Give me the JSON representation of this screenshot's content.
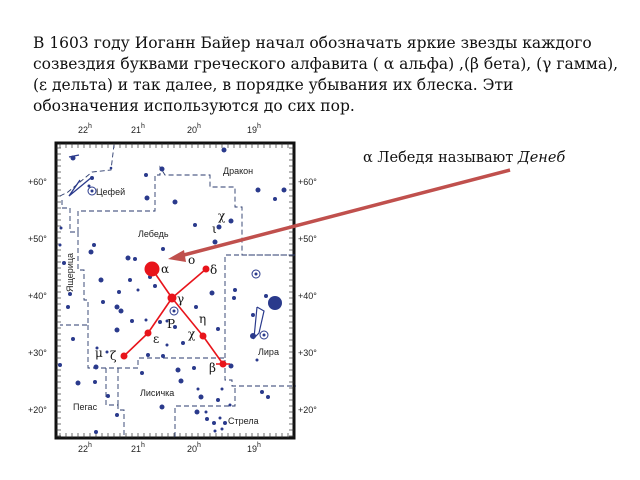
{
  "paragraph": "В 1603 году Иоганн Байер начал обозначать яркие звезды каждого созвездия буквами греческого алфавита ( α альфа) ,(β бета), (γ гамма), (ε дельта) и так далее, в порядке убывания их блеска. Эти обозначения используются до сих пор.",
  "caption": {
    "prefix": "α Лебедя называют ",
    "name": "Денеб"
  },
  "star_map": {
    "ra_labels": [
      "22h",
      "21h",
      "20h",
      "19h"
    ],
    "dec_labels": [
      "+60°",
      "+50°",
      "+40°",
      "+30°",
      "+20°"
    ],
    "constellations": [
      "Дракон",
      "Цефей",
      "Лебедь",
      "Ящерица",
      "Лира",
      "Лисичка",
      "Пегас",
      "Стрела"
    ],
    "greek_labels": [
      "α",
      "β",
      "γ",
      "δ",
      "ε",
      "ζ",
      "η",
      "χ",
      "χ",
      "ι",
      "o",
      "P",
      "μ"
    ],
    "colors": {
      "cygnus": "#e8141b",
      "stars": "#2a3a8c",
      "arrow": "#c0504d"
    }
  }
}
